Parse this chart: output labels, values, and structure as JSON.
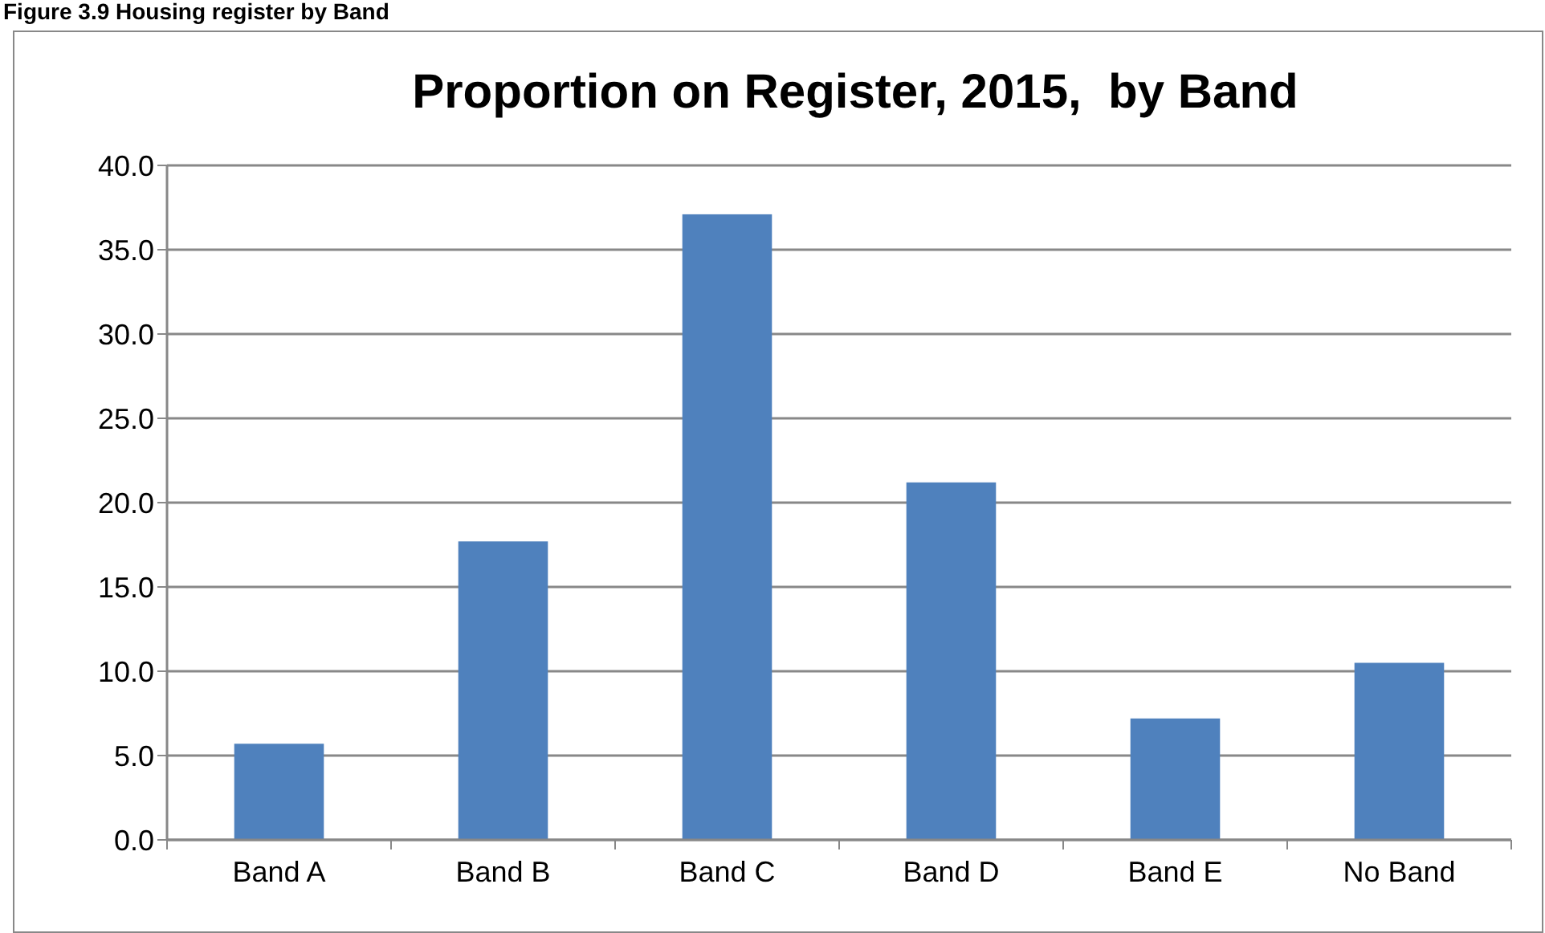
{
  "chart_data": {
    "type": "bar",
    "title": "Proportion on Register, 2015,  by Band",
    "annotations": [
      "Figure 3.9 Housing register by Band"
    ],
    "categories": [
      "Band A",
      "Band B",
      "Band C",
      "Band D",
      "Band E",
      "No Band"
    ],
    "values": [
      5.7,
      17.7,
      37.1,
      21.2,
      7.2,
      10.5
    ],
    "color": "#4f81bd",
    "ylim": [
      0,
      40
    ],
    "yticks": [
      {
        "value": 0,
        "label": "0.0"
      },
      {
        "value": 5,
        "label": "5.0"
      },
      {
        "value": 10,
        "label": "10.0"
      },
      {
        "value": 15,
        "label": "15.0"
      },
      {
        "value": 20,
        "label": "20.0"
      },
      {
        "value": 25,
        "label": "25.0"
      },
      {
        "value": 30,
        "label": "30.0"
      },
      {
        "value": 35,
        "label": "35.0"
      },
      {
        "value": 40,
        "label": "40.0"
      }
    ],
    "grid": "y"
  }
}
